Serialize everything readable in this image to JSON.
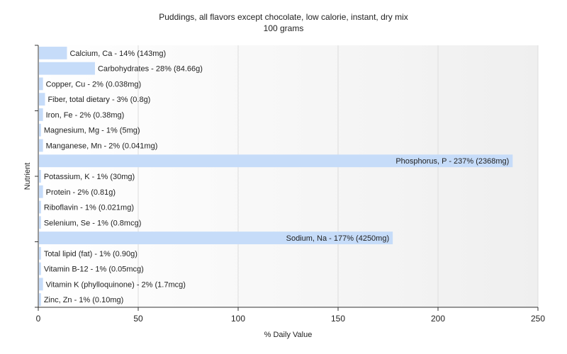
{
  "chart_data": {
    "type": "bar",
    "orientation": "horizontal",
    "title": "Puddings, all flavors except chocolate, low calorie, instant, dry mix",
    "subtitle": "100 grams",
    "xlabel": "% Daily Value",
    "ylabel": "Nutrient",
    "xlim": [
      0,
      250
    ],
    "xticks": [
      0,
      50,
      100,
      150,
      200,
      250
    ],
    "grid": true,
    "bar_color": "#c6dcf9",
    "categories": [
      "Calcium, Ca",
      "Carbohydrates",
      "Copper, Cu",
      "Fiber, total dietary",
      "Iron, Fe",
      "Magnesium, Mg",
      "Manganese, Mn",
      "Phosphorus, P",
      "Potassium, K",
      "Protein",
      "Riboflavin",
      "Selenium, Se",
      "Sodium, Na",
      "Total lipid (fat)",
      "Vitamin B-12",
      "Vitamin K (phylloquinone)",
      "Zinc, Zn"
    ],
    "values": [
      14,
      28,
      2,
      3,
      2,
      1,
      2,
      237,
      1,
      2,
      1,
      1,
      177,
      1,
      1,
      2,
      1
    ],
    "labels": [
      "Calcium, Ca - 14% (143mg)",
      "Carbohydrates - 28% (84.66g)",
      "Copper, Cu - 2% (0.038mg)",
      "Fiber, total dietary - 3% (0.8g)",
      "Iron, Fe - 2% (0.38mg)",
      "Magnesium, Mg - 1% (5mg)",
      "Manganese, Mn - 2% (0.041mg)",
      "Phosphorus, P - 237% (2368mg)",
      "Potassium, K - 1% (30mg)",
      "Protein - 2% (0.81g)",
      "Riboflavin - 1% (0.021mg)",
      "Selenium, Se - 1% (0.8mcg)",
      "Sodium, Na - 177% (4250mg)",
      "Total lipid (fat) - 1% (0.90g)",
      "Vitamin B-12 - 1% (0.05mcg)",
      "Vitamin K (phylloquinone) - 2% (1.7mcg)",
      "Zinc, Zn - 1% (0.10mg)"
    ]
  }
}
